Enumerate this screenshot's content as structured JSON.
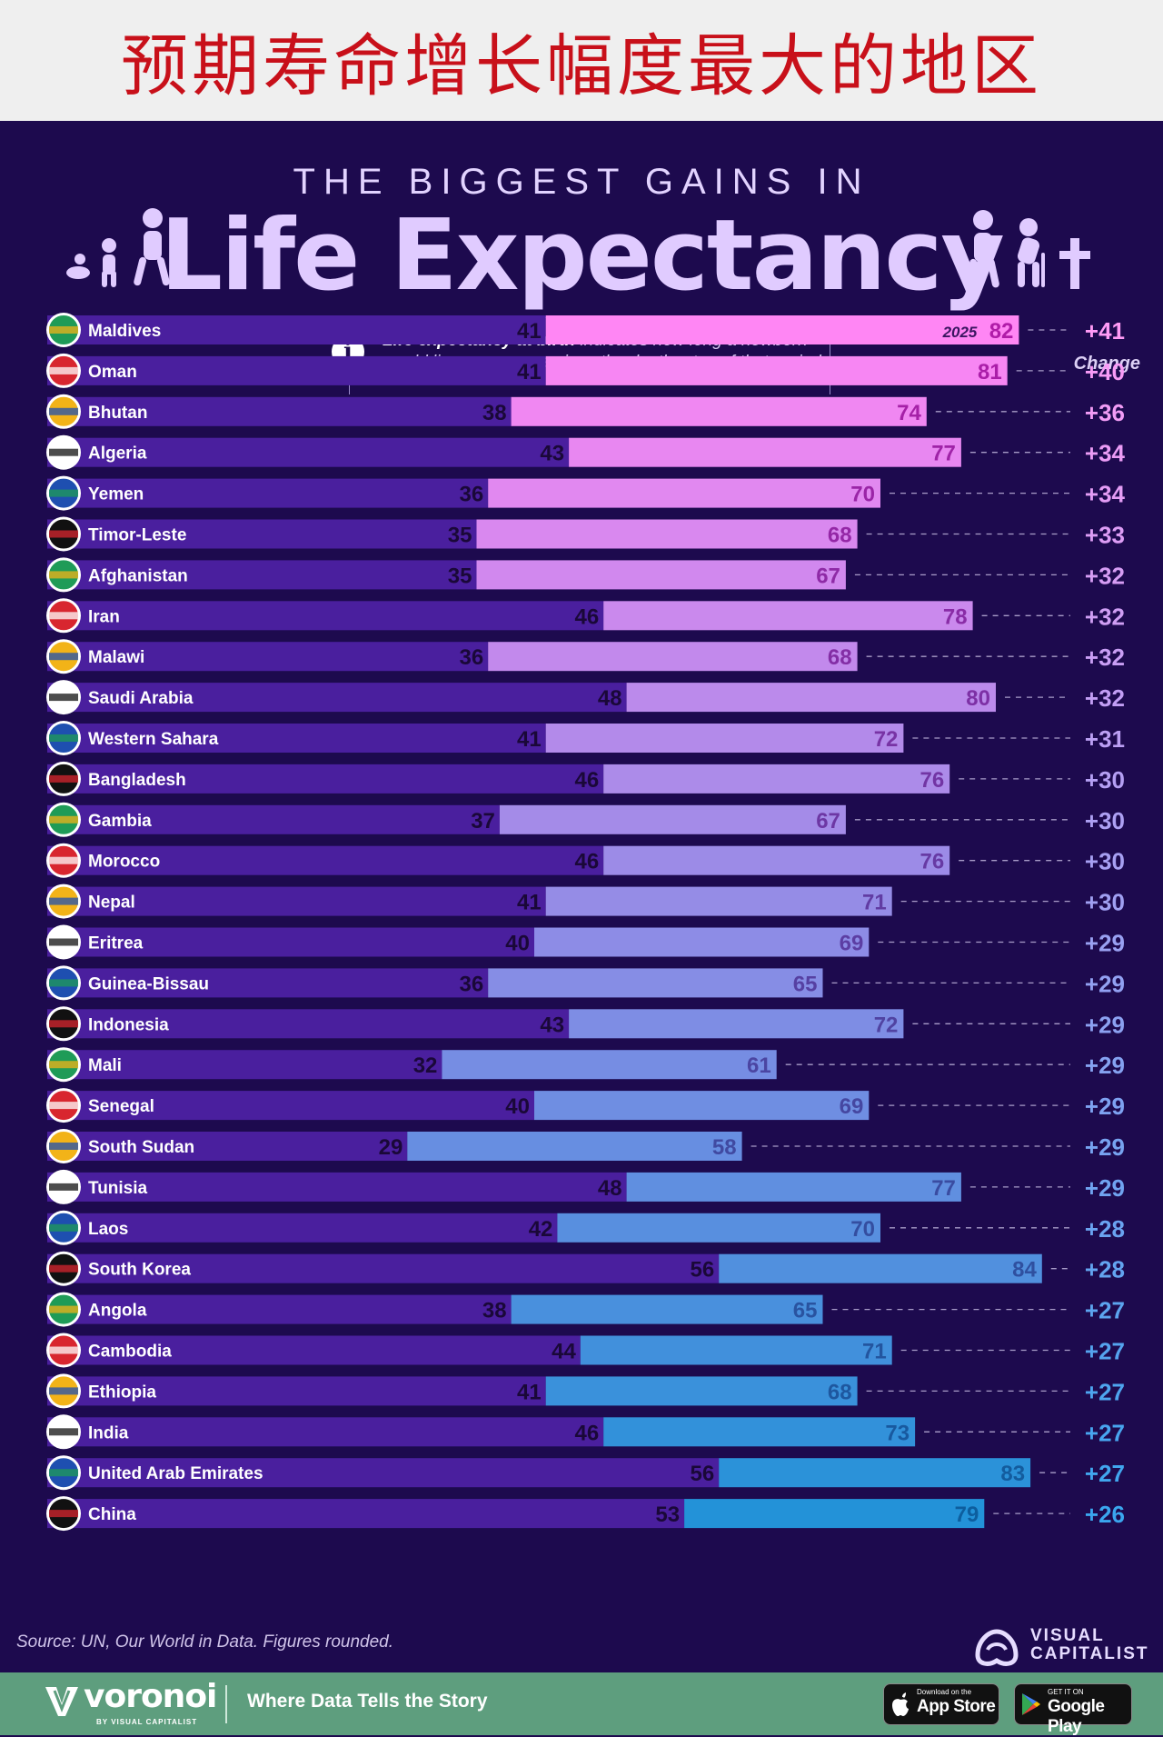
{
  "banner": {
    "title": "预期寿命增长幅度最大的地区"
  },
  "header": {
    "subtitle": "THE BIGGEST GAINS IN",
    "title": "Life Expectancy",
    "info_bold": "Life expectancy at birth",
    "info_rest": " indicates how long a newborn would live on average given the death rates of that period.",
    "change_label": "Change"
  },
  "chart_data": {
    "type": "bar",
    "title": "The Biggest Gains in Life Expectancy",
    "latest_year_label": "2025",
    "series_names": [
      "start",
      "2025"
    ],
    "rows": [
      {
        "country": "Maldives",
        "start": 41,
        "end": 82,
        "change": "+41"
      },
      {
        "country": "Oman",
        "start": 41,
        "end": 81,
        "change": "+40"
      },
      {
        "country": "Bhutan",
        "start": 38,
        "end": 74,
        "change": "+36"
      },
      {
        "country": "Algeria",
        "start": 43,
        "end": 77,
        "change": "+34"
      },
      {
        "country": "Yemen",
        "start": 36,
        "end": 70,
        "change": "+34"
      },
      {
        "country": "Timor-Leste",
        "start": 35,
        "end": 68,
        "change": "+33"
      },
      {
        "country": "Afghanistan",
        "start": 35,
        "end": 67,
        "change": "+32"
      },
      {
        "country": "Iran",
        "start": 46,
        "end": 78,
        "change": "+32"
      },
      {
        "country": "Malawi",
        "start": 36,
        "end": 68,
        "change": "+32"
      },
      {
        "country": "Saudi Arabia",
        "start": 48,
        "end": 80,
        "change": "+32"
      },
      {
        "country": "Western Sahara",
        "start": 41,
        "end": 72,
        "change": "+31"
      },
      {
        "country": "Bangladesh",
        "start": 46,
        "end": 76,
        "change": "+30"
      },
      {
        "country": "Gambia",
        "start": 37,
        "end": 67,
        "change": "+30"
      },
      {
        "country": "Morocco",
        "start": 46,
        "end": 76,
        "change": "+30"
      },
      {
        "country": "Nepal",
        "start": 41,
        "end": 71,
        "change": "+30"
      },
      {
        "country": "Eritrea",
        "start": 40,
        "end": 69,
        "change": "+29"
      },
      {
        "country": "Guinea-Bissau",
        "start": 36,
        "end": 65,
        "change": "+29"
      },
      {
        "country": "Indonesia",
        "start": 43,
        "end": 72,
        "change": "+29"
      },
      {
        "country": "Mali",
        "start": 32,
        "end": 61,
        "change": "+29"
      },
      {
        "country": "Senegal",
        "start": 40,
        "end": 69,
        "change": "+29"
      },
      {
        "country": "South Sudan",
        "start": 29,
        "end": 58,
        "change": "+29"
      },
      {
        "country": "Tunisia",
        "start": 48,
        "end": 77,
        "change": "+29"
      },
      {
        "country": "Laos",
        "start": 42,
        "end": 70,
        "change": "+28"
      },
      {
        "country": "South Korea",
        "start": 56,
        "end": 84,
        "change": "+28"
      },
      {
        "country": "Angola",
        "start": 38,
        "end": 65,
        "change": "+27"
      },
      {
        "country": "Cambodia",
        "start": 44,
        "end": 71,
        "change": "+27"
      },
      {
        "country": "Ethiopia",
        "start": 41,
        "end": 68,
        "change": "+27"
      },
      {
        "country": "India",
        "start": 46,
        "end": 73,
        "change": "+27"
      },
      {
        "country": "United Arab Emirates",
        "start": 56,
        "end": 83,
        "change": "+27"
      },
      {
        "country": "China",
        "start": 53,
        "end": 79,
        "change": "+26"
      }
    ],
    "colors": {
      "start_bar": "#4a1f9e",
      "end_top": "#ff86f4",
      "end_bottom": "#2392d8",
      "start_text": "#1a0838"
    }
  },
  "footer": {
    "source": "Source: UN, Our World in Data. Figures rounded.",
    "vc_line1": "VISUAL",
    "vc_line2": "CAPITALIST",
    "brand": "voronoi",
    "brand_by": "BY VISUAL CAPITALIST",
    "tagline": "Where Data Tells the Story",
    "appstore_small": "Download on the",
    "appstore_big": "App Store",
    "googleplay_small": "GET IT ON",
    "googleplay_big": "Google Play"
  }
}
